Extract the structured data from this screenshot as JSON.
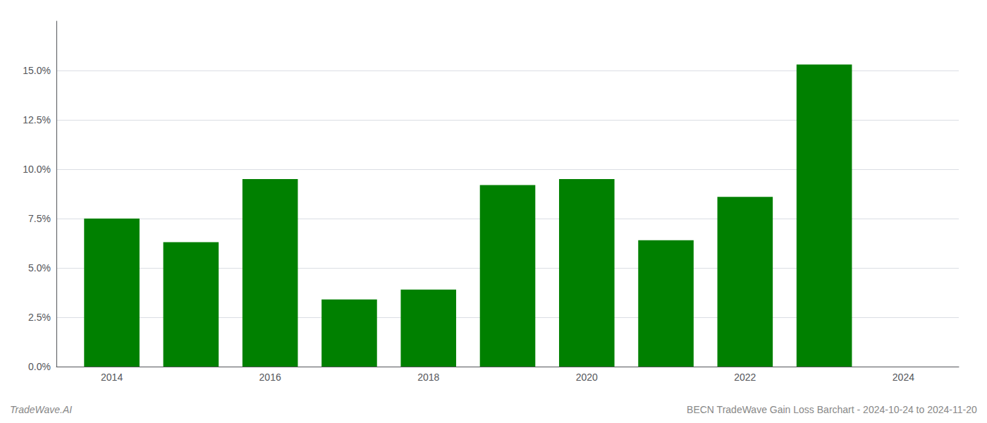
{
  "chart_data": {
    "type": "bar",
    "x": [
      2014,
      2015,
      2016,
      2017,
      2018,
      2019,
      2020,
      2021,
      2022,
      2023
    ],
    "values": [
      0.075,
      0.063,
      0.095,
      0.034,
      0.039,
      0.092,
      0.095,
      0.064,
      0.086,
      0.153
    ],
    "color": "#008000",
    "xlim": [
      2013.3,
      2024.7
    ],
    "xticks": [
      2014,
      2016,
      2018,
      2020,
      2022,
      2024
    ],
    "ylim": [
      0,
      0.175
    ],
    "yticks": [
      {
        "value": 0.0,
        "label": "0.0%"
      },
      {
        "value": 0.025,
        "label": "2.5%"
      },
      {
        "value": 0.05,
        "label": "5.0%"
      },
      {
        "value": 0.075,
        "label": "7.5%"
      },
      {
        "value": 0.1,
        "label": "10.0%"
      },
      {
        "value": 0.125,
        "label": "12.5%"
      },
      {
        "value": 0.15,
        "label": "15.0%"
      }
    ],
    "grid": true,
    "annotations": [
      "TradeWave.AI",
      "BECN TradeWave Gain Loss Barchart - 2024-10-24 to 2024-11-20"
    ]
  }
}
